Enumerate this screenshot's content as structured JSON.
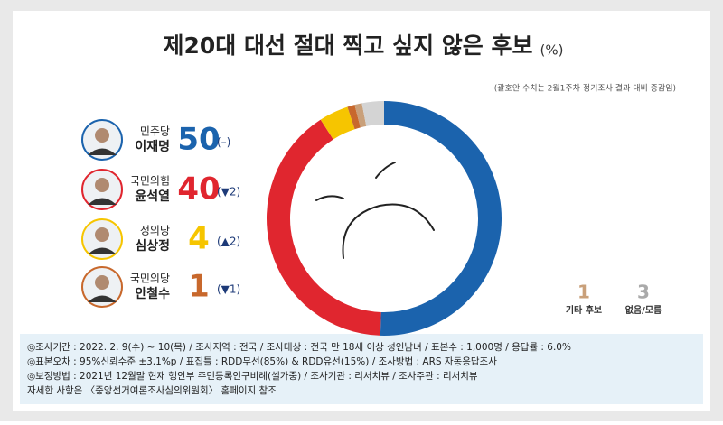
{
  "chart_data": {
    "type": "donut",
    "title": "제20대 대선 절대 찍고 싶지 않은 후보",
    "unit": "(%)",
    "subtitle": "(괄호안 수치는 2월1주차 정기조사 결과 대비 증감임)",
    "categories": [
      "이재명",
      "윤석열",
      "심상정",
      "안철수",
      "기타 후보",
      "없음/모름"
    ],
    "values": [
      50,
      40,
      4,
      1,
      1,
      3
    ],
    "colors": [
      "#1b63ad",
      "#e0262f",
      "#f6c500",
      "#c8682c",
      "#c9a07a",
      "#d4d4d4"
    ],
    "parties": [
      "민주당",
      "국민의힘",
      "정의당",
      "국민의당"
    ],
    "changes": [
      "(–)",
      "(▼2)",
      "(▲2)",
      "(▼1)"
    ],
    "notes": [
      "◎조사기간 : 2022. 2. 9(수) ~ 10(목) / 조사지역 : 전국 / 조사대상 : 전국 만 18세 이상 성인남녀 / 표본수 : 1,000명 / 응답률 : 6.0%",
      "◎표본오차 : 95%신뢰수준 ±3.1%p / 표집틀 : RDD무선(85%) & RDD유선(15%) / 조사방법 : ARS 자동응답조사",
      "◎보정방법 : 2021년 12월말 현재 행안부 주민등록인구비례(셀가중) / 조사기관 : 리서치뷰 / 조사주관 : 리서치뷰",
      "자세한 사항은 〈중앙선거여론조사심의위원회〉 홈페이지 참조"
    ]
  }
}
